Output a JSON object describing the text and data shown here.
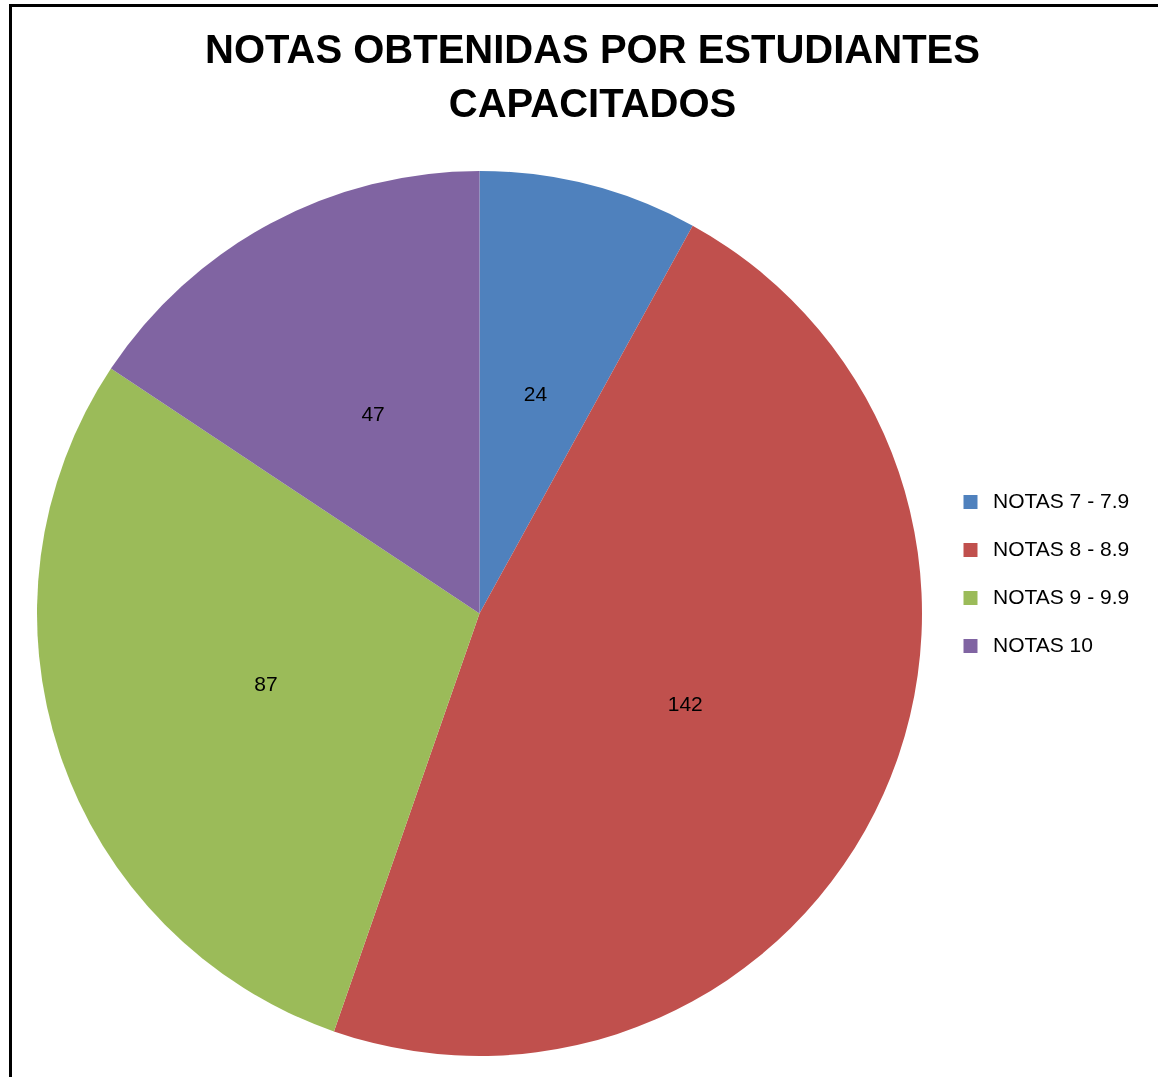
{
  "chart_data": {
    "type": "pie",
    "title": "NOTAS OBTENIDAS POR ESTUDIANTES CAPACITADOS",
    "categories": [
      "NOTAS 7 - 7.9",
      "NOTAS 8 - 8.9",
      "NOTAS 9 - 9.9",
      "NOTAS 10"
    ],
    "values": [
      24,
      142,
      87,
      47
    ],
    "colors": [
      "#4f81bd",
      "#c0504d",
      "#9bbb59",
      "#8064a2"
    ],
    "data_labels": true,
    "legend": "right"
  }
}
